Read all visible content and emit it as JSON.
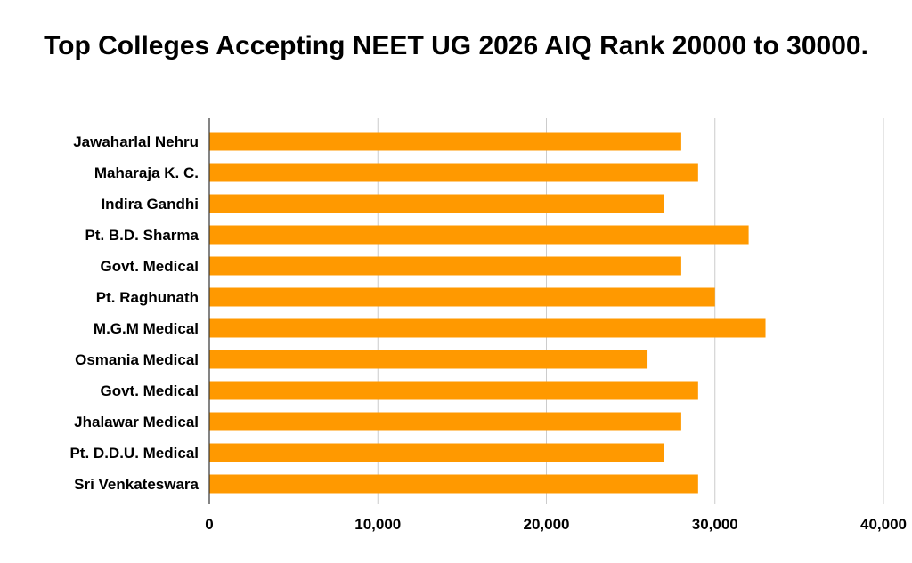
{
  "chart_data": {
    "type": "bar",
    "orientation": "horizontal",
    "title": "Top Colleges Accepting NEET UG 2026 AIQ Rank 20000 to 30000.",
    "categories": [
      "Jawaharlal Nehru",
      "Maharaja K. C.",
      "Indira Gandhi",
      "Pt. B.D. Sharma",
      "Govt. Medical",
      "Pt. Raghunath",
      "M.G.M Medical",
      "Osmania Medical",
      "Govt. Medical",
      "Jhalawar Medical",
      "Pt. D.D.U. Medical",
      "Sri Venkateswara"
    ],
    "values": [
      28000,
      29000,
      27000,
      32000,
      28000,
      30000,
      33000,
      26000,
      29000,
      28000,
      27000,
      29000
    ],
    "xlim": [
      0,
      40000
    ],
    "x_ticks": [
      0,
      10000,
      20000,
      30000,
      40000
    ],
    "x_tick_labels": [
      "0",
      "10,000",
      "20,000",
      "30,000",
      "40,000"
    ],
    "grid": "vertical",
    "bar_color": "#FF9900",
    "xlabel": "",
    "ylabel": ""
  }
}
